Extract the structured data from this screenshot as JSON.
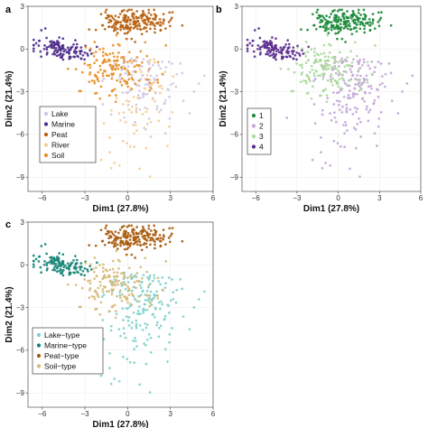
{
  "chart_data": [
    {
      "type": "scatter",
      "panel": "a",
      "xlabel": "Dim1 (27.8%)",
      "ylabel": "Dim2 (21.4%)",
      "xlim": [
        -7,
        6
      ],
      "ylim": [
        -10,
        3
      ],
      "xticks": [
        -6,
        -3,
        0,
        3,
        6
      ],
      "yticks": [
        3,
        0,
        -3,
        -6,
        -9
      ],
      "grid": true,
      "legend_position": "bottom-left",
      "series": [
        {
          "name": "Lake",
          "color": "#cfc6e4",
          "clusters": "lake"
        },
        {
          "name": "Marine",
          "color": "#4b2a8a",
          "clusters": "marine"
        },
        {
          "name": "Peat",
          "color": "#b85f0c",
          "clusters": "peat"
        },
        {
          "name": "River",
          "color": "#f3cc94",
          "clusters": "river"
        },
        {
          "name": "Soil",
          "color": "#e88f25",
          "clusters": "soil"
        }
      ]
    },
    {
      "type": "scatter",
      "panel": "b",
      "xlabel": "Dim1 (27.8%)",
      "ylabel": "Dim2 (21.4%)",
      "xlim": [
        -7,
        6
      ],
      "ylim": [
        -10,
        3
      ],
      "xticks": [
        -6,
        -3,
        0,
        3,
        6
      ],
      "yticks": [
        3,
        0,
        -3,
        -6,
        -9
      ],
      "grid": true,
      "legend_position": "bottom-left",
      "series": [
        {
          "name": "1",
          "color": "#1b8a3a",
          "clusters": "peat"
        },
        {
          "name": "2",
          "color": "#c2a5d6",
          "clusters": "lake+river"
        },
        {
          "name": "3",
          "color": "#a9d89a",
          "clusters": "soil"
        },
        {
          "name": "4",
          "color": "#5b2c8f",
          "clusters": "marine"
        }
      ]
    },
    {
      "type": "scatter",
      "panel": "c",
      "xlabel": "Dim1 (27.8%)",
      "ylabel": "Dim2 (21.4%)",
      "xlim": [
        -7,
        6
      ],
      "ylim": [
        -10,
        3
      ],
      "xticks": [
        -6,
        -3,
        0,
        3,
        6
      ],
      "yticks": [
        3,
        0,
        -3,
        -6,
        -9
      ],
      "grid": true,
      "legend_position": "bottom-left",
      "series": [
        {
          "name": "Lake−type",
          "color": "#7fd0cc",
          "clusters": "lake+river"
        },
        {
          "name": "Marine−type",
          "color": "#138474",
          "clusters": "marine"
        },
        {
          "name": "Peat−type",
          "color": "#a85b0b",
          "clusters": "peat"
        },
        {
          "name": "Soil−type",
          "color": "#d6b978",
          "clusters": "soil"
        }
      ]
    }
  ],
  "cluster_shapes": {
    "peat": {
      "n": 190,
      "cx": 0.4,
      "cy": 1.9,
      "sx": 1.25,
      "sy": 0.45
    },
    "marine": {
      "n": 120,
      "cx": -4.6,
      "cy": 0.0,
      "sx": 1.05,
      "sy": 0.4
    },
    "soil": {
      "n": 150,
      "cx": -0.9,
      "cy": -1.4,
      "sx": 1.3,
      "sy": 1.0
    },
    "lake": {
      "n": 110,
      "cx": 1.3,
      "cy": -2.2,
      "sx": 1.4,
      "sy": 1.6
    },
    "river": {
      "n": 70,
      "cx": 0.8,
      "cy": -4.0,
      "sx": 1.3,
      "sy": 2.2
    }
  }
}
